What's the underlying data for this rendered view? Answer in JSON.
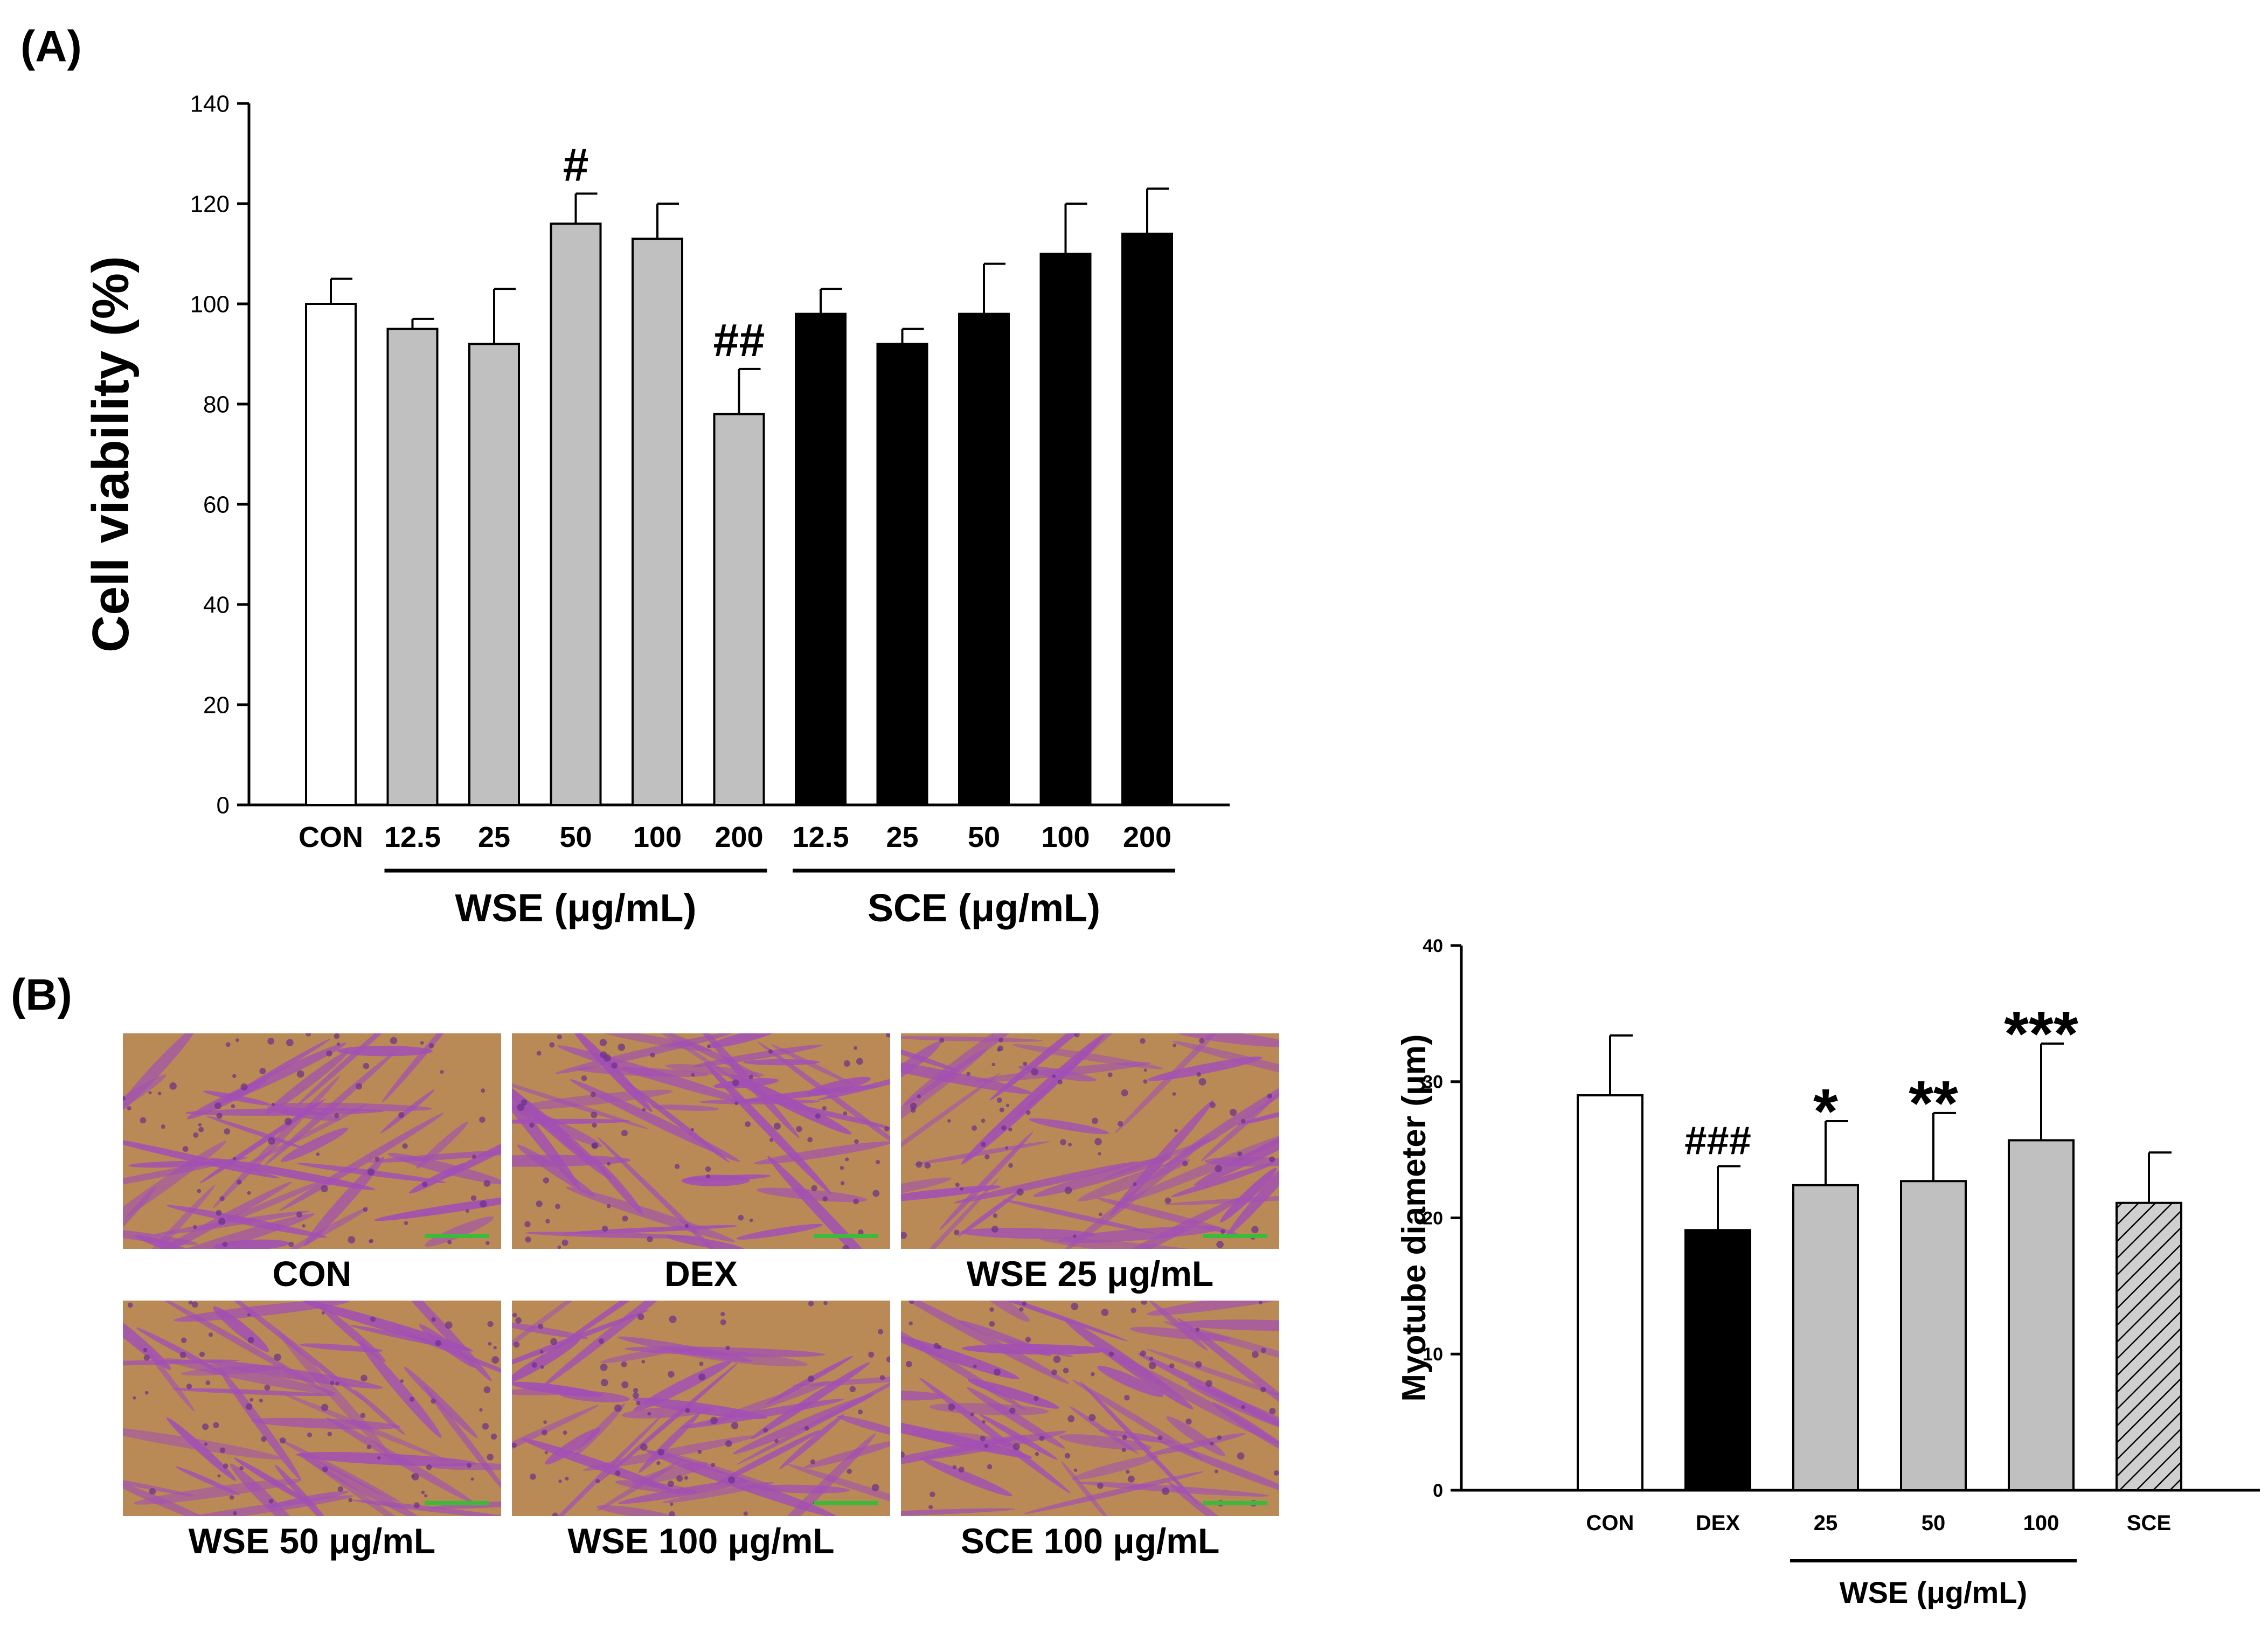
{
  "panel_labels": {
    "a": "(A)",
    "b": "(B)"
  },
  "colors": {
    "white_bar": "#ffffff",
    "gray_bar": "#c0c0c0",
    "black_bar": "#000000",
    "micro_bg": "#b98a55",
    "micro_cell": "#a24fb5",
    "micro_nucleus": "#6a2f8c",
    "scale_bar": "#3cba3c"
  },
  "chart_data": [
    {
      "type": "bar",
      "title": "",
      "ylabel": "Cell viability (%)",
      "xlabel": "",
      "ylim": [
        0,
        140
      ],
      "yticks": [
        0,
        20,
        40,
        60,
        80,
        100,
        120,
        140
      ],
      "categories": [
        "CON",
        "12.5",
        "25",
        "50",
        "100",
        "200",
        "12.5",
        "25",
        "50",
        "100",
        "200"
      ],
      "values": [
        100,
        95,
        92,
        116,
        113,
        78,
        98,
        92,
        98,
        110,
        114
      ],
      "errors": [
        5,
        2,
        11,
        6,
        7,
        9,
        5,
        3,
        10,
        10,
        9
      ],
      "fills": [
        "white",
        "gray",
        "gray",
        "gray",
        "gray",
        "gray",
        "black",
        "black",
        "black",
        "black",
        "black"
      ],
      "annotations": [
        "",
        "",
        "",
        "#",
        "",
        "##",
        "",
        "",
        "",
        "",
        ""
      ],
      "groups": [
        {
          "label": "WSE (μg/mL)",
          "start": 1,
          "end": 5
        },
        {
          "label": "SCE (μg/mL)",
          "start": 6,
          "end": 10
        }
      ]
    },
    {
      "type": "bar",
      "title": "",
      "ylabel": "Myotube diameter (μm)",
      "xlabel": "",
      "ylim": [
        0,
        40
      ],
      "yticks": [
        0,
        10,
        20,
        30,
        40
      ],
      "categories": [
        "CON",
        "DEX",
        "25",
        "50",
        "100",
        "SCE"
      ],
      "values": [
        29,
        19.1,
        22.4,
        22.7,
        25.7,
        21.1
      ],
      "errors": [
        4.4,
        4.7,
        4.7,
        5,
        7.1,
        3.7
      ],
      "fills": [
        "white",
        "black",
        "gray",
        "gray",
        "gray",
        "hatch"
      ],
      "annotations": [
        "",
        "###",
        "*",
        "**",
        "***",
        ""
      ],
      "groups": [
        {
          "label": "WSE (μg/mL)",
          "start": 2,
          "end": 4
        }
      ]
    }
  ],
  "micrographs": {
    "captions": [
      "CON",
      "DEX",
      "WSE 25 μg/mL",
      "WSE 50 μg/mL",
      "WSE 100 μg/mL",
      "SCE 100 μg/mL"
    ]
  }
}
